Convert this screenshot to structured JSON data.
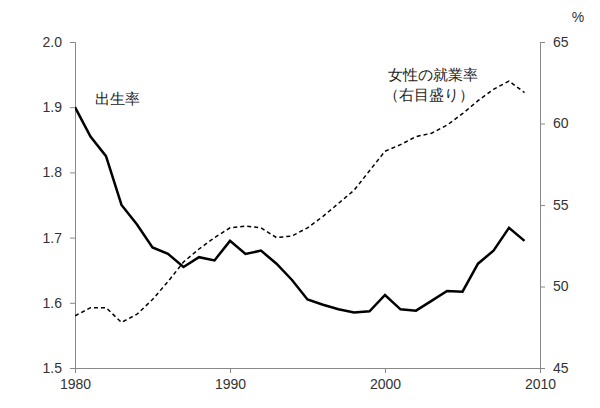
{
  "chart_data": {
    "type": "line",
    "x": [
      1980,
      1981,
      1982,
      1983,
      1984,
      1985,
      1986,
      1987,
      1988,
      1989,
      1990,
      1991,
      1992,
      1993,
      1994,
      1995,
      1996,
      1997,
      1998,
      1999,
      2000,
      2001,
      2002,
      2003,
      2004,
      2005,
      2006,
      2007,
      2008,
      2009
    ],
    "xlim": [
      1980,
      2010
    ],
    "xticks": [
      1980,
      1990,
      2000,
      2010
    ],
    "ylim": [
      1.5,
      2.0
    ],
    "yticks": [
      1.5,
      1.6,
      1.7,
      1.8,
      1.9,
      {
        "value": 2,
        "label": "2.0"
      }
    ],
    "y2lim": [
      45,
      65
    ],
    "y2ticks": [
      45,
      50,
      55,
      60,
      65
    ],
    "y2_label": "%",
    "grid": false,
    "series": [
      {
        "name": "出生率",
        "color": "#000000",
        "line_style": "solid",
        "values": [
          1.9,
          1.855,
          1.825,
          1.75,
          1.72,
          1.685,
          1.675,
          1.655,
          1.67,
          1.665,
          1.695,
          1.675,
          1.68,
          1.66,
          1.635,
          1.605,
          1.597,
          1.59,
          1.585,
          1.587,
          1.612,
          1.59,
          1.588,
          1.603,
          1.618,
          1.617,
          1.66,
          1.68,
          1.715,
          1.695
        ]
      },
      {
        "name": "女性の就業率",
        "color": "#000000",
        "line_style": "dashed",
        "axis": "y2",
        "values": [
          48.2,
          48.7,
          48.7,
          47.8,
          48.3,
          49.2,
          50.3,
          51.5,
          52.3,
          53.0,
          53.6,
          53.7,
          53.6,
          53.0,
          53.1,
          53.6,
          54.3,
          55.1,
          55.9,
          57.1,
          58.3,
          58.7,
          59.2,
          59.4,
          59.9,
          60.6,
          61.4,
          62.1,
          62.6,
          61.9
        ]
      }
    ],
    "annotations": [
      "（右目盛り）"
    ]
  }
}
